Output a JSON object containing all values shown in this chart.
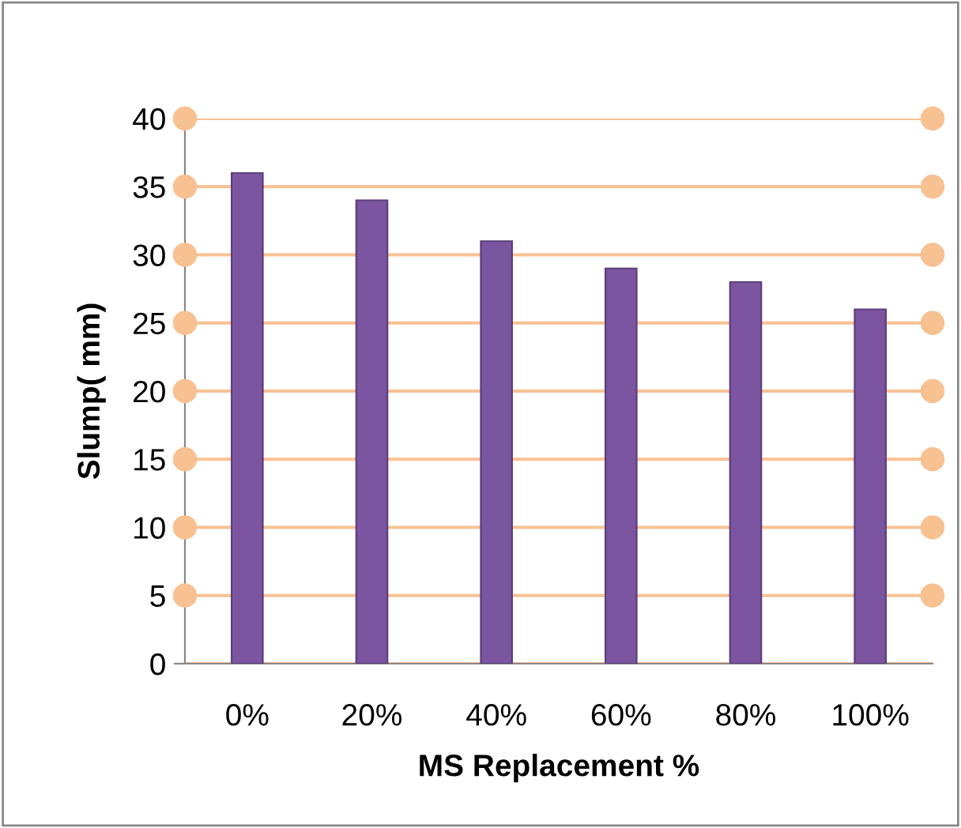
{
  "chart_data": {
    "type": "bar",
    "xlabel": "MS Replacement %",
    "ylabel": "Slump( mm)",
    "categories": [
      "0%",
      "20%",
      "40%",
      "60%",
      "80%",
      "100%"
    ],
    "values": [
      36,
      34,
      31,
      29,
      28,
      26
    ],
    "color": "#7b559f",
    "ylim": [
      0,
      40
    ],
    "yticks": [
      0,
      5,
      10,
      15,
      20,
      25,
      30,
      35,
      40
    ],
    "grid": "y"
  }
}
